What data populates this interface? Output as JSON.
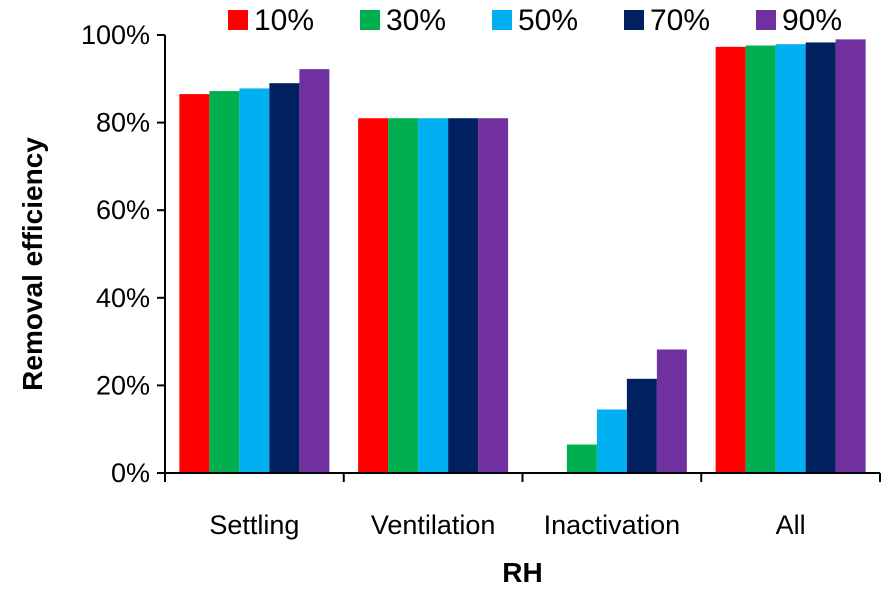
{
  "chart_data": {
    "type": "bar",
    "title": "",
    "xlabel": "RH",
    "ylabel": "Removal efficiency",
    "ylim": [
      0,
      100
    ],
    "yticks": [
      0,
      20,
      40,
      60,
      80,
      100
    ],
    "ytick_labels": [
      "0%",
      "20%",
      "40%",
      "60%",
      "80%",
      "100%"
    ],
    "categories": [
      "Settling",
      "Ventilation",
      "Inactivation",
      "All"
    ],
    "series": [
      {
        "name": "10%",
        "color": "#ff0000",
        "values": [
          86.5,
          81,
          0,
          97.3
        ]
      },
      {
        "name": "30%",
        "color": "#00b050",
        "values": [
          87.2,
          81,
          6.5,
          97.6
        ]
      },
      {
        "name": "50%",
        "color": "#00b0f0",
        "values": [
          87.8,
          81,
          14.5,
          97.9
        ]
      },
      {
        "name": "70%",
        "color": "#002060",
        "values": [
          89,
          81,
          21.5,
          98.3
        ]
      },
      {
        "name": "90%",
        "color": "#7030a0",
        "values": [
          92.2,
          81,
          28.2,
          99
        ]
      }
    ],
    "legend_position": "top",
    "grid": false
  }
}
